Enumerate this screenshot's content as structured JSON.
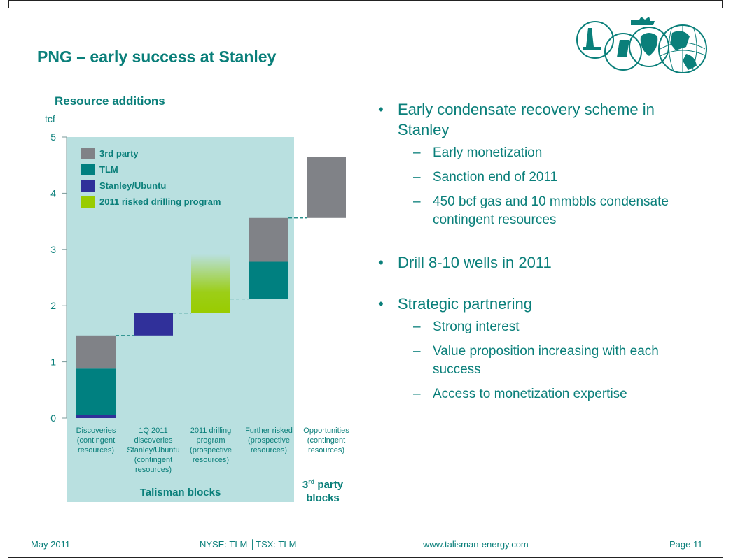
{
  "slide": {
    "title": "PNG – early success at Stanley",
    "colors": {
      "accent": "#0a7f7a",
      "panel": "#b9e0e0"
    }
  },
  "resource": {
    "title": "Resource additions",
    "unit": "tcf"
  },
  "chart_data": {
    "type": "bar",
    "subtype": "waterfall-stacked",
    "ylim": [
      0,
      5
    ],
    "yticks": [
      0,
      1,
      2,
      3,
      4,
      5
    ],
    "grid": false,
    "legend_position": "top-left",
    "categories": [
      [
        "Discoveries",
        "(contingent",
        "resources)"
      ],
      [
        "1Q 2011",
        "discoveries",
        "Stanley/Ubuntu",
        "(contingent",
        "resources)"
      ],
      [
        "2011 drilling",
        "program",
        "(prospective",
        "resources)"
      ],
      [
        "Further risked",
        "(prospective",
        "resources)"
      ],
      [
        "Opportunities",
        "(contingent",
        "resources)"
      ]
    ],
    "legend": [
      {
        "name": "3rd party",
        "color": "#808287"
      },
      {
        "name": "TLM",
        "color": "#008080"
      },
      {
        "name": "Stanley/Ubuntu",
        "color": "#30309a"
      },
      {
        "name": "2011 risked drilling program",
        "color": "#99cc00"
      }
    ],
    "bars": [
      {
        "segments": [
          {
            "series": "Stanley/Ubuntu",
            "from": 0.0,
            "to": 0.06
          },
          {
            "series": "TLM",
            "from": 0.06,
            "to": 0.88
          },
          {
            "series": "3rd party",
            "from": 0.88,
            "to": 1.47
          }
        ]
      },
      {
        "segments": [
          {
            "series": "Stanley/Ubuntu",
            "from": 1.47,
            "to": 1.87
          }
        ]
      },
      {
        "segments": [
          {
            "series": "2011 risked drilling program",
            "from": 1.87,
            "to": 2.92,
            "gradient": true
          }
        ]
      },
      {
        "segments": [
          {
            "series": "TLM",
            "from": 2.12,
            "to": 2.78
          },
          {
            "series": "3rd party",
            "from": 2.78,
            "to": 3.56
          }
        ]
      },
      {
        "segments": [
          {
            "series": "3rd party",
            "from": 3.56,
            "to": 4.65
          }
        ]
      }
    ],
    "connectors": [
      1.47,
      1.87,
      2.12,
      3.56
    ],
    "group_labels": {
      "talisman": "Talisman blocks",
      "third_party_pre": "3",
      "third_party_sup": "rd",
      "third_party_post": " party",
      "third_party_line2": "blocks"
    }
  },
  "bullets": [
    {
      "text": "Early condensate recovery scheme in Stanley",
      "subs": [
        "Early monetization",
        "Sanction end of 2011",
        "450 bcf gas and 10 mmbbls condensate contingent resources"
      ]
    },
    {
      "text": "Drill 8-10 wells in 2011",
      "subs": []
    },
    {
      "text": "Strategic partnering",
      "subs": [
        "Strong interest",
        "Value proposition increasing with each success",
        "Access to monetization expertise"
      ]
    }
  ],
  "footer": {
    "date": "May 2011",
    "ticker": "NYSE: TLM │TSX: TLM",
    "url": "www.talisman-energy.com",
    "page": "Page 11"
  }
}
